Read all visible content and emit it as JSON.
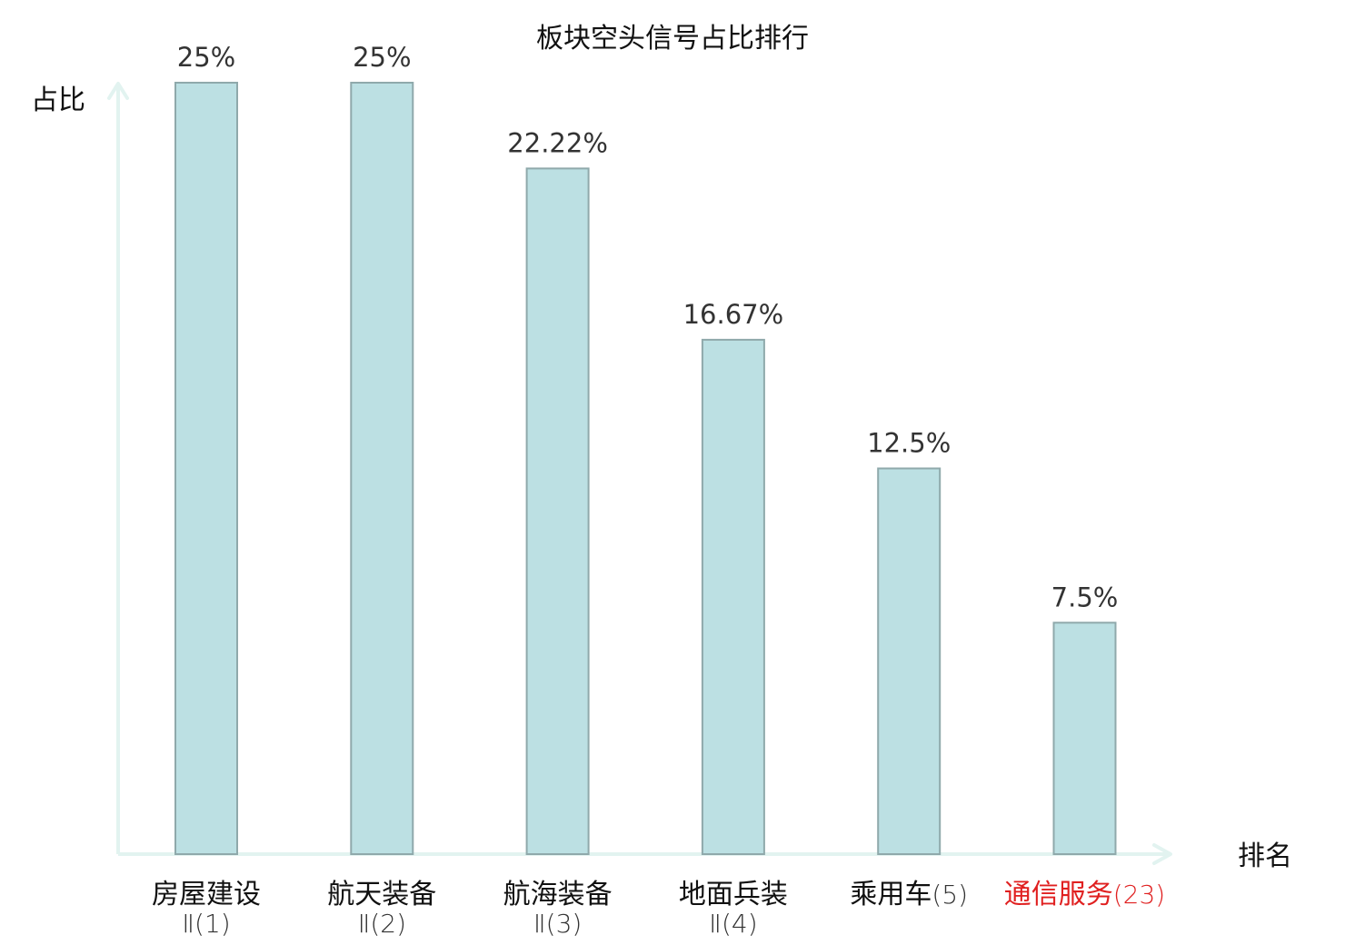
{
  "chart_data": {
    "type": "bar",
    "title": "板块空头信号占比排行",
    "xlabel": "排名",
    "ylabel": "占比",
    "ylim": [
      0,
      25
    ],
    "grid": false,
    "categories": [
      {
        "name": "房屋建设",
        "rank": "Ⅱ(1)",
        "highlight": false
      },
      {
        "name": "航天装备",
        "rank": "Ⅱ(2)",
        "highlight": false
      },
      {
        "name": "航海装备",
        "rank": "Ⅱ(3)",
        "highlight": false
      },
      {
        "name": "地面兵装",
        "rank": "Ⅱ(4)",
        "highlight": false
      },
      {
        "name": "乘用车",
        "rank": "(5)",
        "highlight": false
      },
      {
        "name": "通信服务",
        "rank": "(23)",
        "highlight": true
      }
    ],
    "values": [
      25,
      25,
      22.22,
      16.67,
      12.5,
      7.5
    ],
    "value_labels": [
      "25%",
      "25%",
      "22.22%",
      "16.67%",
      "12.5%",
      "7.5%"
    ]
  },
  "colors": {
    "bar_fill": "#bce0e3",
    "bar_stroke": "#8fa9ab",
    "axis": "#e2f3f0",
    "text": "#111111",
    "value_text": "#333333",
    "category_text": "#111111",
    "rank_text": "#333333",
    "highlight": "#e02020"
  }
}
